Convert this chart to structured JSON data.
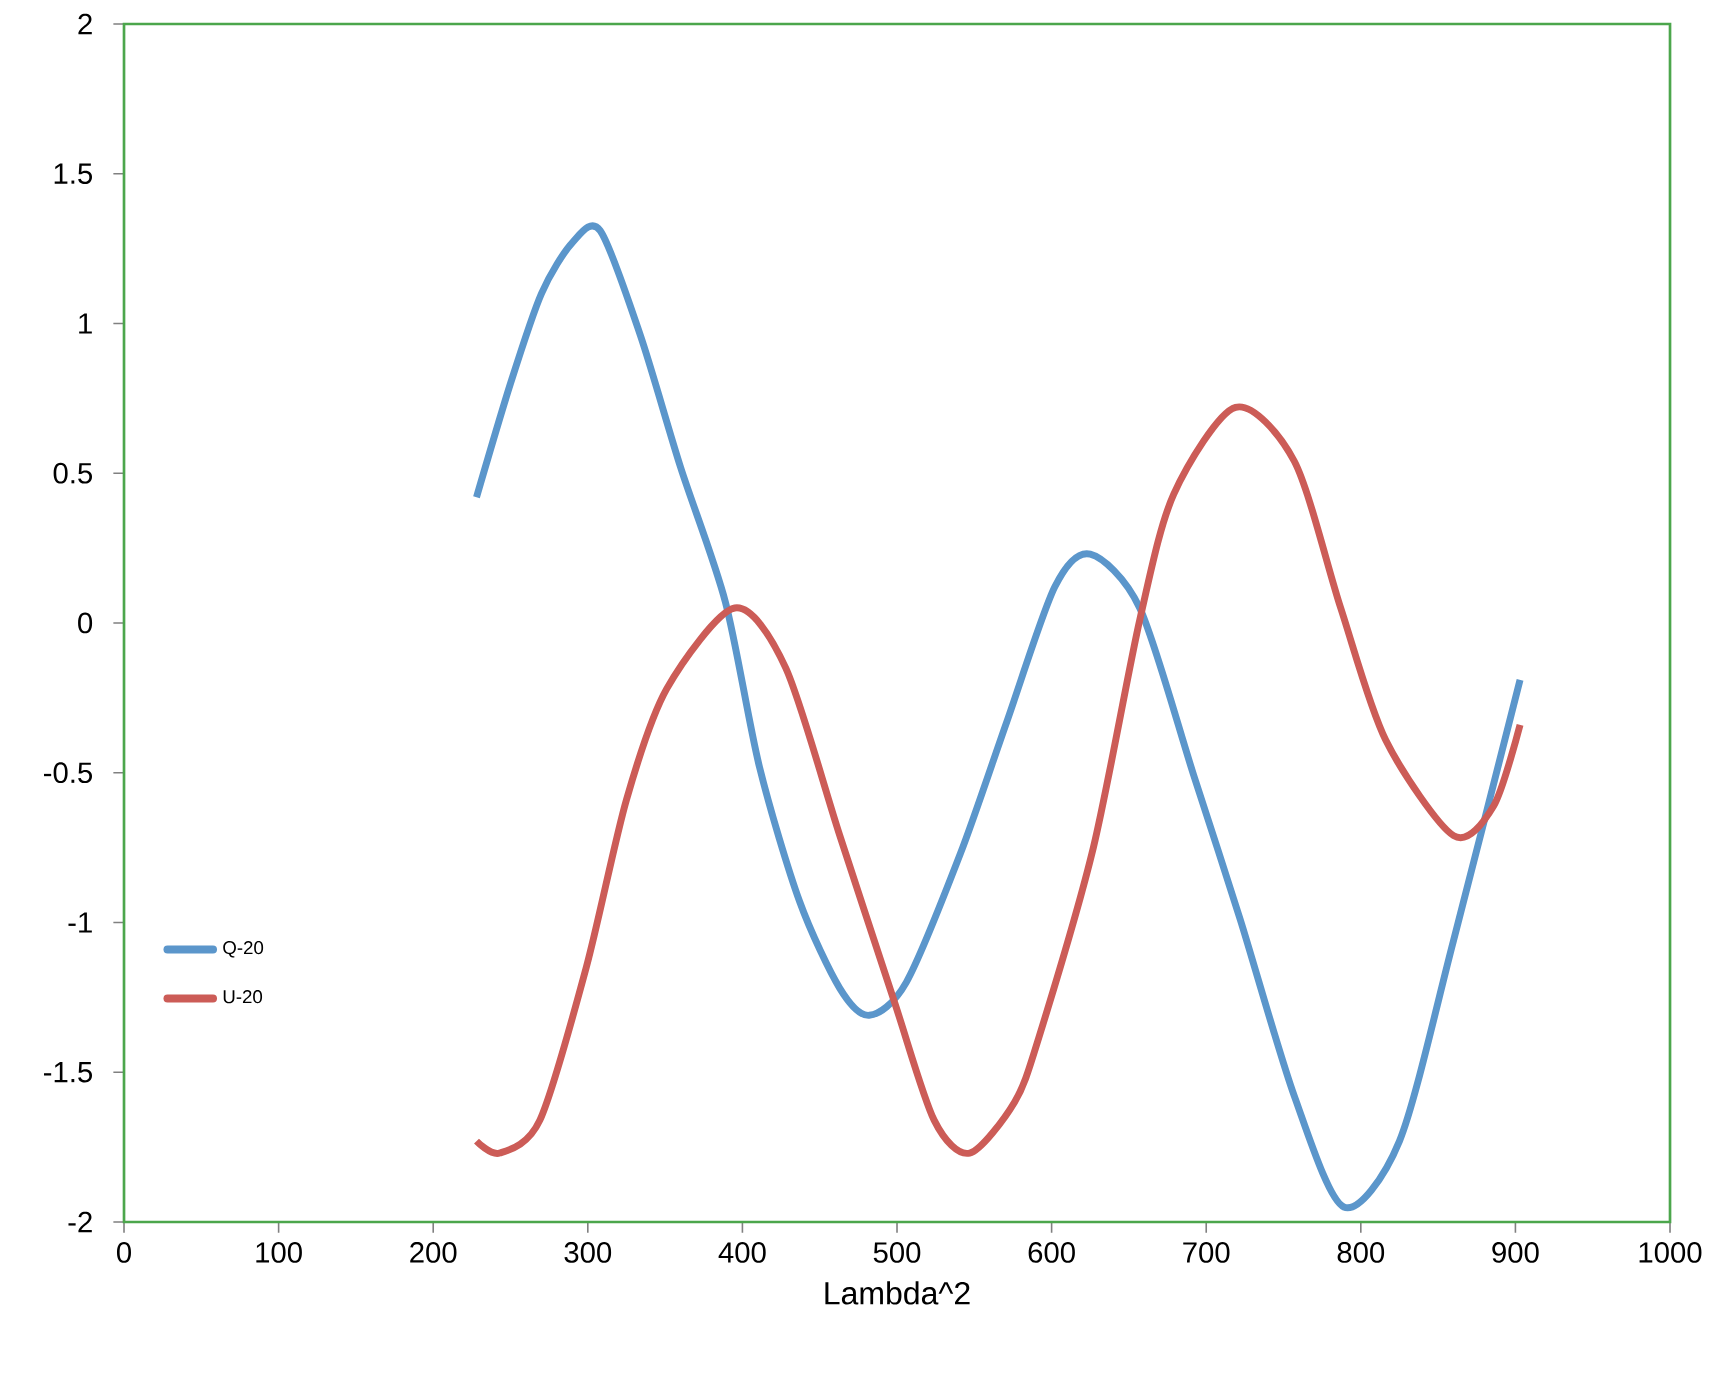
{
  "chart_data": {
    "type": "line",
    "xlabel": "Lambda^2",
    "xlim": [
      0,
      1000
    ],
    "ylim": [
      -2,
      2
    ],
    "xticks": [
      0,
      100,
      200,
      300,
      400,
      500,
      600,
      700,
      800,
      900,
      1000
    ],
    "yticks": [
      -2,
      -1.5,
      -1,
      -0.5,
      0,
      0.5,
      1,
      1.5,
      2
    ],
    "grid": false,
    "legend": "bottom left",
    "marker": "none",
    "line_style": "solid",
    "series": [
      {
        "name": "Q-20",
        "color": "#5b96cb",
        "x": [
          228,
          250,
          270,
          290,
          308,
          334,
          360,
          389,
          411,
          437,
          463,
          482,
          506,
          541,
          571,
          602,
          625,
          657,
          692,
          722,
          757,
          789,
          825,
          860,
          903
        ],
        "values": [
          0.42,
          0.8,
          1.1,
          1.27,
          1.31,
          0.96,
          0.52,
          0.07,
          -0.48,
          -0.93,
          -1.22,
          -1.31,
          -1.2,
          -0.77,
          -0.33,
          0.12,
          0.23,
          0.05,
          -0.51,
          -0.99,
          -1.58,
          -1.95,
          -1.73,
          -1.06,
          -0.19
        ]
      },
      {
        "name": "U-20",
        "color": "#cc5c57",
        "x": [
          228,
          243,
          269,
          299,
          325,
          351,
          395,
          428,
          463,
          498,
          524,
          547,
          576,
          592,
          627,
          657,
          679,
          719,
          757,
          787,
          816,
          860,
          886,
          903
        ],
        "values": [
          -1.73,
          -1.77,
          -1.66,
          -1.15,
          -0.59,
          -0.22,
          0.05,
          -0.15,
          -0.71,
          -1.26,
          -1.66,
          -1.77,
          -1.6,
          -1.38,
          -0.75,
          0.01,
          0.43,
          0.72,
          0.54,
          0.05,
          -0.39,
          -0.71,
          -0.61,
          -0.34
        ]
      }
    ]
  }
}
